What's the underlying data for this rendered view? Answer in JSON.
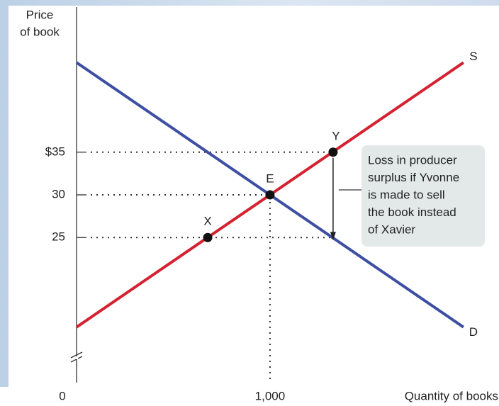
{
  "chart_data": {
    "type": "line",
    "y_label_lines": [
      "Price",
      "of book"
    ],
    "x_label": "Quantity of books",
    "xlim": [
      0,
      2180
    ],
    "ylim": [
      8,
      52
    ],
    "xticks": [
      0,
      {
        "value": 1000,
        "label": "1,000"
      }
    ],
    "yticks": [
      25,
      30,
      {
        "value": 35,
        "label": "$35"
      }
    ],
    "series": [
      {
        "name": "S",
        "color": "#d42231",
        "x": [
          0,
          2000
        ],
        "values": [
          14.5,
          45.5
        ]
      },
      {
        "name": "D",
        "color": "#3e4fa3",
        "x": [
          0,
          2000
        ],
        "values": [
          45.5,
          14.5
        ]
      }
    ],
    "points": [
      {
        "label": "X",
        "x": 678,
        "y": 25
      },
      {
        "label": "E",
        "x": 1000,
        "y": 30
      },
      {
        "label": "Y",
        "x": 1326,
        "y": 35
      }
    ],
    "annotation_lines": [
      "Loss in producer",
      "surplus if Yvonne",
      "is made to sell",
      "the book instead",
      "of Xavier"
    ]
  }
}
